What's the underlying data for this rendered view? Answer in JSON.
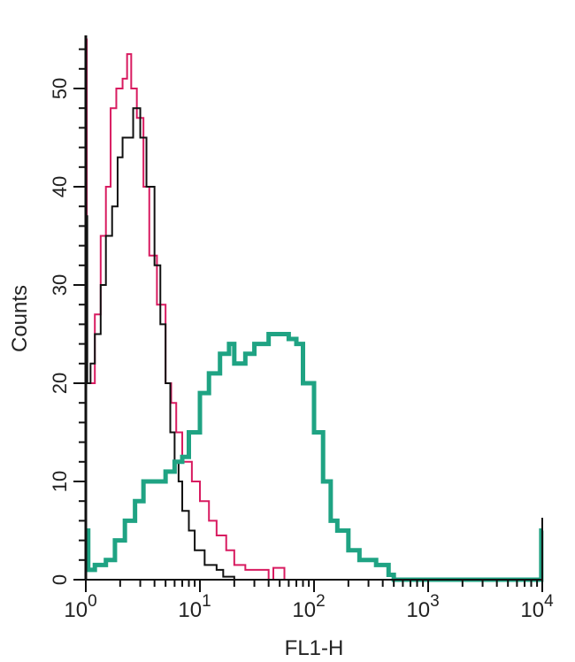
{
  "chart_data": {
    "type": "line",
    "title": "",
    "xlabel": "FL1-H",
    "ylabel": "Counts",
    "xscale": "log",
    "xlim": [
      1,
      10000
    ],
    "ylim": [
      0,
      55
    ],
    "grid": false,
    "x_ticks": [
      {
        "base": "10",
        "exp": "0",
        "value": 1
      },
      {
        "base": "10",
        "exp": "1",
        "value": 10
      },
      {
        "base": "10",
        "exp": "2",
        "value": 100
      },
      {
        "base": "10",
        "exp": "3",
        "value": 1000
      },
      {
        "base": "10",
        "exp": "4",
        "value": 10000
      }
    ],
    "y_ticks": [
      0,
      10,
      20,
      30,
      40,
      50
    ],
    "series": [
      {
        "color": "#d81b60",
        "points": [
          [
            1.0,
            55
          ],
          [
            1.02,
            20
          ],
          [
            1.1,
            20
          ],
          [
            1.2,
            27
          ],
          [
            1.35,
            35
          ],
          [
            1.5,
            40
          ],
          [
            1.65,
            48
          ],
          [
            1.85,
            50
          ],
          [
            2.1,
            51
          ],
          [
            2.3,
            53.5
          ],
          [
            2.5,
            50
          ],
          [
            2.8,
            47
          ],
          [
            3.2,
            40
          ],
          [
            3.6,
            33
          ],
          [
            4.2,
            28
          ],
          [
            5,
            20
          ],
          [
            5.6,
            18
          ],
          [
            6.2,
            15
          ],
          [
            7,
            12
          ],
          [
            8.5,
            10
          ],
          [
            10,
            8
          ],
          [
            12,
            6
          ],
          [
            14,
            4.5
          ],
          [
            17,
            3
          ],
          [
            20,
            1.5
          ],
          [
            25,
            1
          ],
          [
            35,
            1
          ],
          [
            40,
            0
          ],
          [
            44,
            1.2
          ],
          [
            52,
            1.2
          ],
          [
            55,
            0
          ],
          [
            500,
            0
          ]
        ]
      },
      {
        "color": "#111111",
        "points": [
          [
            1.0,
            37
          ],
          [
            1.03,
            20
          ],
          [
            1.1,
            22
          ],
          [
            1.2,
            25
          ],
          [
            1.35,
            30
          ],
          [
            1.5,
            35
          ],
          [
            1.7,
            38
          ],
          [
            1.9,
            43
          ],
          [
            2.1,
            45
          ],
          [
            2.4,
            45
          ],
          [
            2.6,
            48
          ],
          [
            3.0,
            45
          ],
          [
            3.4,
            40
          ],
          [
            4,
            32
          ],
          [
            4.5,
            26
          ],
          [
            5,
            20
          ],
          [
            5.5,
            15
          ],
          [
            6,
            12
          ],
          [
            6.5,
            10
          ],
          [
            7,
            7
          ],
          [
            8,
            5
          ],
          [
            9,
            3
          ],
          [
            11,
            1.5
          ],
          [
            14,
            1
          ],
          [
            16,
            0.3
          ],
          [
            20,
            0
          ],
          [
            300,
            0
          ]
        ]
      },
      {
        "color": "#1fa383",
        "points": [
          [
            1,
            5
          ],
          [
            1.05,
            1
          ],
          [
            1.2,
            1.5
          ],
          [
            1.5,
            2
          ],
          [
            1.8,
            4
          ],
          [
            2.2,
            6
          ],
          [
            2.7,
            8
          ],
          [
            3.2,
            10
          ],
          [
            4,
            10
          ],
          [
            5,
            11
          ],
          [
            6,
            12
          ],
          [
            7,
            12.5
          ],
          [
            8,
            15
          ],
          [
            10,
            19
          ],
          [
            12,
            21
          ],
          [
            15,
            23
          ],
          [
            18,
            24
          ],
          [
            20,
            22
          ],
          [
            25,
            23
          ],
          [
            30,
            24
          ],
          [
            40,
            25
          ],
          [
            50,
            25
          ],
          [
            60,
            24.5
          ],
          [
            70,
            24
          ],
          [
            80,
            20
          ],
          [
            100,
            15
          ],
          [
            120,
            10
          ],
          [
            140,
            6
          ],
          [
            160,
            5
          ],
          [
            200,
            3
          ],
          [
            250,
            2
          ],
          [
            350,
            1.5
          ],
          [
            450,
            0.5
          ],
          [
            500,
            0
          ],
          [
            9500,
            0
          ],
          [
            9800,
            5
          ],
          [
            10000,
            5
          ]
        ]
      }
    ]
  }
}
